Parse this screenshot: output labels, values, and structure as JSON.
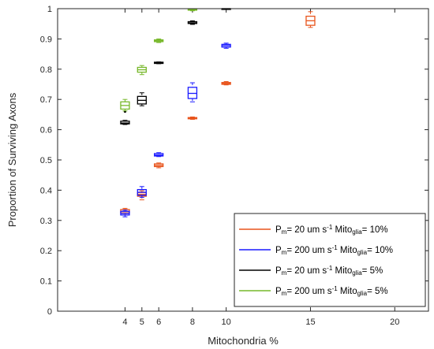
{
  "chart_data": {
    "type": "box",
    "xlabel": "Mitochondria %",
    "ylabel": "Proportion of Surviving Axons",
    "xlim": [
      0,
      22
    ],
    "ylim": [
      0,
      1
    ],
    "xticks": [
      "4",
      "5",
      "6",
      "8",
      "10",
      "15",
      "20"
    ],
    "yticks": [
      "0",
      "0.1",
      "0.2",
      "0.3",
      "0.4",
      "0.5",
      "0.6",
      "0.7",
      "0.8",
      "0.9",
      "1"
    ],
    "legend": {
      "placement": "bottom-right",
      "entries": [
        {
          "p": "P",
          "p_sub": "m",
          "mid": "= 20 um s",
          "sup": "-1",
          "mito": " Mito",
          "mito_sub": "glia",
          "tail": "= 10%"
        },
        {
          "p": "P",
          "p_sub": "m",
          "mid": "= 200 um s",
          "sup": "-1",
          "mito": " Mito",
          "mito_sub": "glia",
          "tail": "= 10%"
        },
        {
          "p": "P",
          "p_sub": "m",
          "mid": "= 20 um s",
          "sup": "-1",
          "mito": " Mito",
          "mito_sub": "glia",
          "tail": "= 5%"
        },
        {
          "p": "P",
          "p_sub": "m",
          "mid": "= 200 um s",
          "sup": "-1",
          "mito": " Mito",
          "mito_sub": "glia",
          "tail": "= 5%"
        }
      ]
    },
    "series": [
      {
        "color": "#e8541c",
        "boxes": [
          {
            "x": 4,
            "min": 0.318,
            "q1": 0.325,
            "median": 0.33,
            "q3": 0.336,
            "max": 0.34,
            "outliers": []
          },
          {
            "x": 5,
            "min": 0.368,
            "q1": 0.38,
            "median": 0.386,
            "q3": 0.392,
            "max": 0.398,
            "outliers": []
          },
          {
            "x": 6,
            "min": 0.474,
            "q1": 0.478,
            "median": 0.482,
            "q3": 0.487,
            "max": 0.49,
            "outliers": []
          },
          {
            "x": 8,
            "min": 0.634,
            "q1": 0.636,
            "median": 0.638,
            "q3": 0.64,
            "max": 0.642,
            "outliers": []
          },
          {
            "x": 10,
            "min": 0.748,
            "q1": 0.75,
            "median": 0.753,
            "q3": 0.756,
            "max": 0.759,
            "outliers": []
          },
          {
            "x": 15,
            "min": 0.938,
            "q1": 0.945,
            "median": 0.96,
            "q3": 0.975,
            "max": 0.99,
            "outliers": []
          }
        ]
      },
      {
        "color": "#1a1aff",
        "boxes": [
          {
            "x": 4,
            "min": 0.312,
            "q1": 0.318,
            "median": 0.323,
            "q3": 0.33,
            "max": 0.334,
            "outliers": []
          },
          {
            "x": 5,
            "min": 0.376,
            "q1": 0.383,
            "median": 0.393,
            "q3": 0.402,
            "max": 0.412,
            "outliers": []
          },
          {
            "x": 6,
            "min": 0.511,
            "q1": 0.513,
            "median": 0.516,
            "q3": 0.521,
            "max": 0.524,
            "outliers": []
          },
          {
            "x": 8,
            "min": 0.692,
            "q1": 0.703,
            "median": 0.72,
            "q3": 0.74,
            "max": 0.755,
            "outliers": []
          },
          {
            "x": 10,
            "min": 0.869,
            "q1": 0.873,
            "median": 0.878,
            "q3": 0.882,
            "max": 0.886,
            "outliers": []
          }
        ]
      },
      {
        "color": "#000000",
        "boxes": [
          {
            "x": 4,
            "min": 0.617,
            "q1": 0.619,
            "median": 0.622,
            "q3": 0.628,
            "max": 0.631,
            "outliers": [
              0.66
            ]
          },
          {
            "x": 5,
            "min": 0.679,
            "q1": 0.685,
            "median": 0.697,
            "q3": 0.71,
            "max": 0.722,
            "outliers": []
          },
          {
            "x": 6,
            "min": 0.818,
            "q1": 0.819,
            "median": 0.821,
            "q3": 0.823,
            "max": 0.824,
            "outliers": []
          },
          {
            "x": 8,
            "min": 0.948,
            "q1": 0.951,
            "median": 0.953,
            "q3": 0.957,
            "max": 0.96,
            "outliers": []
          },
          {
            "x": 10,
            "min": 0.999,
            "q1": 0.999,
            "median": 1.0,
            "q3": 1.0,
            "max": 1.0,
            "outliers": []
          }
        ]
      },
      {
        "color": "#77b82a",
        "boxes": [
          {
            "x": 4,
            "min": 0.662,
            "q1": 0.668,
            "median": 0.68,
            "q3": 0.692,
            "max": 0.7,
            "outliers": []
          },
          {
            "x": 5,
            "min": 0.782,
            "q1": 0.79,
            "median": 0.798,
            "q3": 0.806,
            "max": 0.812,
            "outliers": []
          },
          {
            "x": 6,
            "min": 0.888,
            "q1": 0.891,
            "median": 0.894,
            "q3": 0.897,
            "max": 0.9,
            "outliers": []
          },
          {
            "x": 8,
            "min": 0.993,
            "q1": 0.995,
            "median": 0.997,
            "q3": 0.999,
            "max": 1.0,
            "outliers": []
          }
        ]
      }
    ]
  }
}
